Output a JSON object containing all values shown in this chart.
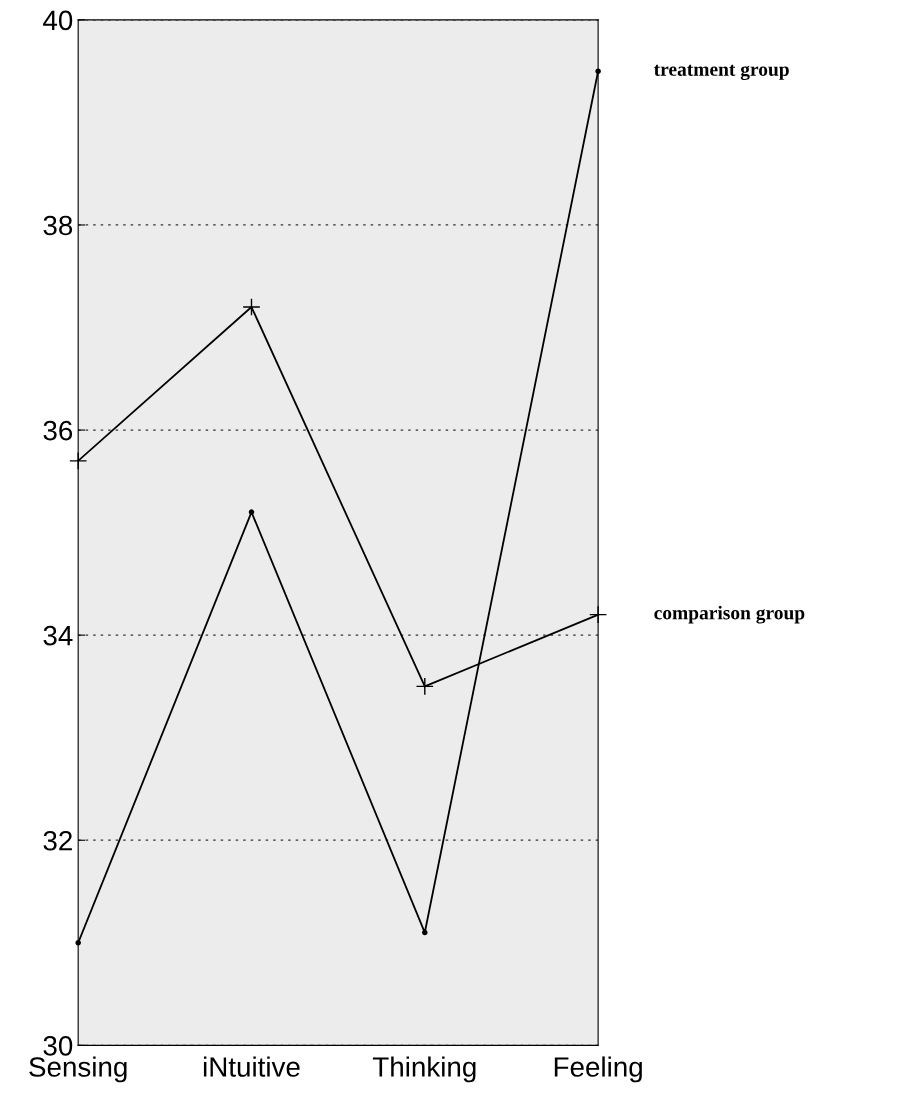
{
  "chart_data": {
    "type": "line",
    "categories": [
      "Sensing",
      "iNtuitive",
      "Thinking",
      "Feeling"
    ],
    "series": [
      {
        "name": "treatment group",
        "color": "#000000",
        "marker": "circle",
        "values": [
          31.0,
          35.2,
          31.1,
          39.5
        ]
      },
      {
        "name": "comparison group",
        "color": "#000000",
        "marker": "cross",
        "values": [
          35.7,
          37.2,
          33.5,
          34.2
        ]
      }
    ],
    "ylim": [
      30,
      40
    ],
    "yticks": [
      30,
      32,
      34,
      36,
      38,
      40
    ],
    "grid": "y",
    "line_style": "solid",
    "legend": false
  }
}
